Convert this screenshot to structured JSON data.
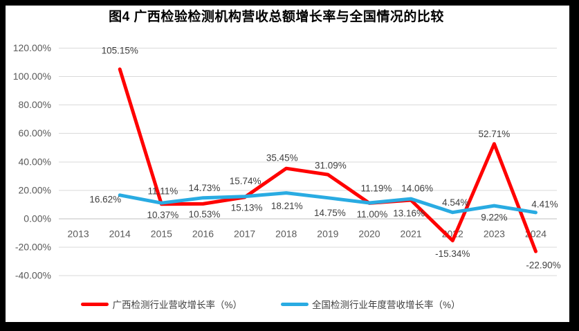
{
  "frame": {
    "border_color": "#000000",
    "canvas_background": "#ffffff"
  },
  "chart_data": {
    "type": "line",
    "title": "图4 广西检验检测机构营收总额增长率与全国情况的比较",
    "xlabel": "",
    "ylabel": "",
    "categories": [
      "2013",
      "2014",
      "2015",
      "2016",
      "2017",
      "2018",
      "2019",
      "2020",
      "2021",
      "2022",
      "2023",
      "2024"
    ],
    "ylim": [
      -40,
      120
    ],
    "ytick_step": 20,
    "ytick_format": "0.00%",
    "grid": true,
    "gridline_color": "#d9d9d9",
    "axis_line_color": "#bfbfbf",
    "axis_label_color": "#595959",
    "data_label_color": "#3f3f3f",
    "legend_position": "bottom",
    "series": [
      {
        "name": "广西检测行业营收增长率（%）",
        "color": "#FF0000",
        "start_category": "2014",
        "values": [
          105.15,
          10.37,
          10.53,
          15.13,
          35.45,
          31.09,
          11.0,
          13.16,
          -15.34,
          52.71,
          -22.9
        ],
        "label_offsets": [
          [
            0,
            -27
          ],
          [
            2,
            16
          ],
          [
            2,
            15
          ],
          [
            3,
            15
          ],
          [
            -6,
            -15
          ],
          [
            4,
            -13
          ],
          [
            4,
            16
          ],
          [
            -3,
            19
          ],
          [
            0,
            19
          ],
          [
            0,
            -14
          ],
          [
            11,
            20
          ]
        ]
      },
      {
        "name": "全国检测行业年度营收增长率（%）",
        "color": "#29ABE2",
        "start_category": "2014",
        "values": [
          16.62,
          11.11,
          14.73,
          15.74,
          18.21,
          14.75,
          11.19,
          14.06,
          4.54,
          9.22,
          4.41
        ],
        "label_offsets": [
          [
            -21,
            6
          ],
          [
            2,
            -17
          ],
          [
            2,
            -14
          ],
          [
            1,
            -22
          ],
          [
            1,
            19
          ],
          [
            3,
            22
          ],
          [
            10,
            -21
          ],
          [
            9,
            -15
          ],
          [
            4,
            -14
          ],
          [
            0,
            17
          ],
          [
            13,
            -12
          ]
        ]
      }
    ]
  }
}
